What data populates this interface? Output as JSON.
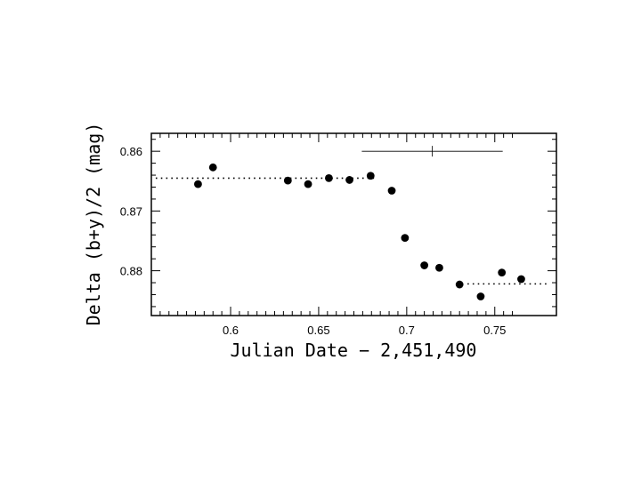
{
  "chart_data": {
    "type": "scatter",
    "title": "",
    "xlabel": "Julian Date − 2,451,490",
    "ylabel": "Delta (b+y)/2 (mag)",
    "xlim": [
      0.555,
      0.785
    ],
    "ylim": [
      0.857,
      0.8875
    ],
    "y_inverted": true,
    "grid": false,
    "x_ticks": [
      0.6,
      0.65,
      0.7,
      0.75
    ],
    "x_tick_labels": [
      "0.6",
      "0.65",
      "0.7",
      "0.75"
    ],
    "y_ticks": [
      0.86,
      0.87,
      0.88
    ],
    "y_tick_labels": [
      "0.86",
      "0.87",
      "0.88"
    ],
    "points": [
      {
        "x": 0.5815,
        "y": 0.8655
      },
      {
        "x": 0.59,
        "y": 0.8627
      },
      {
        "x": 0.6325,
        "y": 0.8649
      },
      {
        "x": 0.644,
        "y": 0.8655
      },
      {
        "x": 0.6558,
        "y": 0.8645
      },
      {
        "x": 0.6675,
        "y": 0.8648
      },
      {
        "x": 0.6795,
        "y": 0.8641
      },
      {
        "x": 0.6915,
        "y": 0.8666
      },
      {
        "x": 0.699,
        "y": 0.8745
      },
      {
        "x": 0.71,
        "y": 0.8791
      },
      {
        "x": 0.7185,
        "y": 0.8795
      },
      {
        "x": 0.73,
        "y": 0.8823
      },
      {
        "x": 0.742,
        "y": 0.8843
      },
      {
        "x": 0.754,
        "y": 0.8803
      },
      {
        "x": 0.765,
        "y": 0.8814
      }
    ],
    "reference_lines": [
      {
        "x_start": 0.5575,
        "x_end": 0.6825,
        "y": 0.8645,
        "style": "dotted"
      },
      {
        "x_start": 0.7345,
        "x_end": 0.78,
        "y": 0.8822,
        "style": "dotted"
      }
    ],
    "error_bar": {
      "x": 0.7145,
      "y": 0.86,
      "x_low": 0.6745,
      "x_high": 0.7545
    }
  }
}
